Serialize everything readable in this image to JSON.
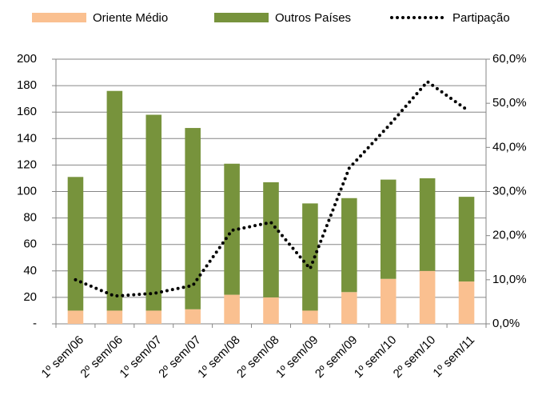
{
  "chart_data": {
    "type": "bar",
    "stacked": true,
    "categories": [
      "1º sem/06",
      "2º sem/06",
      "1º sem/07",
      "2º sem/07",
      "1º sem/08",
      "2º sem/08",
      "1º sem/09",
      "2º sem/09",
      "1º sem/10",
      "2º sem/10",
      "1º sem/11"
    ],
    "series": [
      {
        "name": "Oriente Médio",
        "color": "#fac090",
        "values": [
          10,
          10,
          10,
          11,
          22,
          20,
          10,
          24,
          34,
          40,
          32
        ]
      },
      {
        "name": "Outros Países",
        "color": "#77933c",
        "values": [
          101,
          166,
          148,
          137,
          99,
          87,
          81,
          71,
          75,
          70,
          64
        ]
      },
      {
        "name": "Partipação",
        "color": "#000000",
        "type": "line",
        "line_style": "dotted",
        "axis": "y2",
        "values": [
          10.0,
          6.3,
          6.9,
          8.7,
          21.2,
          23.0,
          12.5,
          35.3,
          44.8,
          54.9,
          48.6
        ]
      }
    ],
    "ylim": [
      0,
      200
    ],
    "yticks": [
      {
        "value": 0,
        "label": "-"
      },
      20,
      40,
      60,
      80,
      100,
      120,
      140,
      160,
      180,
      200
    ],
    "y2lim": [
      0,
      60
    ],
    "y2ticks": [
      {
        "value": 0,
        "label": "0,0%"
      },
      {
        "value": 10,
        "label": "10,0%"
      },
      {
        "value": 20,
        "label": "20,0%"
      },
      {
        "value": 30,
        "label": "30,0%"
      },
      {
        "value": 40,
        "label": "40,0%"
      },
      {
        "value": 50,
        "label": "50,0%"
      },
      {
        "value": 60,
        "label": "60,0%"
      }
    ],
    "grid": true,
    "legend_position": "top"
  }
}
